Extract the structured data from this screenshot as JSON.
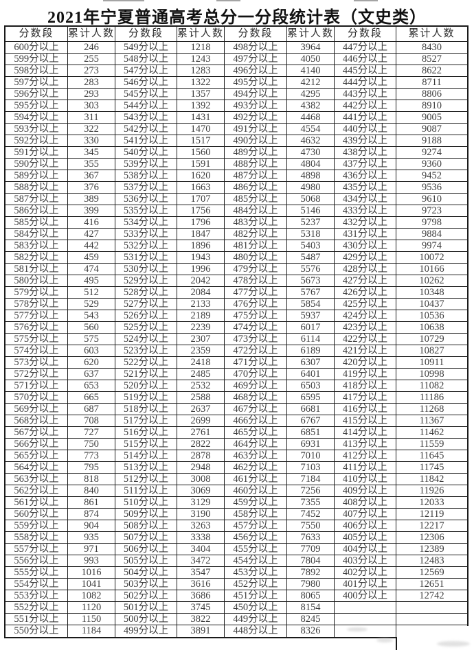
{
  "title": "2021年宁夏普通高考总分一分段统计表（文史类）",
  "colors": {
    "border": "#1a1a1a",
    "text": "#3d3d3d",
    "title": "#111111"
  },
  "table": {
    "headers": [
      "分数段",
      "累计人数",
      "分数段",
      "累计人数",
      "分数段",
      "累计人数",
      "分数段",
      "累计人数"
    ],
    "groups": [
      {
        "rows": [
          [
            "600分以上",
            "246"
          ],
          [
            "599分以上",
            "255"
          ],
          [
            "598分以上",
            "273"
          ],
          [
            "597分以上",
            "283"
          ],
          [
            "596分以上",
            "293"
          ],
          [
            "595分以上",
            "303"
          ],
          [
            "594分以上",
            "311"
          ],
          [
            "593分以上",
            "322"
          ],
          [
            "592分以上",
            "330"
          ],
          [
            "591分以上",
            "345"
          ],
          [
            "590分以上",
            "355"
          ],
          [
            "589分以上",
            "367"
          ],
          [
            "588分以上",
            "376"
          ],
          [
            "587分以上",
            "389"
          ],
          [
            "586分以上",
            "399"
          ],
          [
            "585分以上",
            "416"
          ],
          [
            "584分以上",
            "427"
          ],
          [
            "583分以上",
            "442"
          ],
          [
            "582分以上",
            "459"
          ],
          [
            "581分以上",
            "474"
          ],
          [
            "580分以上",
            "495"
          ],
          [
            "579分以上",
            "512"
          ],
          [
            "578分以上",
            "529"
          ],
          [
            "577分以上",
            "543"
          ],
          [
            "576分以上",
            "560"
          ],
          [
            "575分以上",
            "575"
          ],
          [
            "574分以上",
            "603"
          ],
          [
            "573分以上",
            "620"
          ],
          [
            "572分以上",
            "637"
          ],
          [
            "571分以上",
            "653"
          ],
          [
            "570分以上",
            "665"
          ],
          [
            "569分以上",
            "687"
          ],
          [
            "568分以上",
            "708"
          ],
          [
            "567分以上",
            "727"
          ],
          [
            "566分以上",
            "750"
          ],
          [
            "565分以上",
            "773"
          ],
          [
            "564分以上",
            "795"
          ],
          [
            "563分以上",
            "818"
          ],
          [
            "562分以上",
            "840"
          ],
          [
            "561分以上",
            "861"
          ],
          [
            "560分以上",
            "874"
          ],
          [
            "559分以上",
            "904"
          ],
          [
            "558分以上",
            "935"
          ],
          [
            "557分以上",
            "971"
          ],
          [
            "556分以上",
            "993"
          ],
          [
            "555分以上",
            "1016"
          ],
          [
            "554分以上",
            "1041"
          ],
          [
            "553分以上",
            "1082"
          ],
          [
            "552分以上",
            "1120"
          ],
          [
            "551分以上",
            "1150"
          ],
          [
            "550分以上",
            "1184"
          ]
        ]
      },
      {
        "rows": [
          [
            "549分以上",
            "1218"
          ],
          [
            "548分以上",
            "1243"
          ],
          [
            "547分以上",
            "1283"
          ],
          [
            "546分以上",
            "1322"
          ],
          [
            "545分以上",
            "1357"
          ],
          [
            "544分以上",
            "1392"
          ],
          [
            "543分以上",
            "1431"
          ],
          [
            "542分以上",
            "1470"
          ],
          [
            "541分以上",
            "1517"
          ],
          [
            "540分以上",
            "1560"
          ],
          [
            "539分以上",
            "1591"
          ],
          [
            "538分以上",
            "1620"
          ],
          [
            "537分以上",
            "1663"
          ],
          [
            "536分以上",
            "1707"
          ],
          [
            "535分以上",
            "1756"
          ],
          [
            "534分以上",
            "1796"
          ],
          [
            "533分以上",
            "1847"
          ],
          [
            "532分以上",
            "1896"
          ],
          [
            "531分以上",
            "1943"
          ],
          [
            "530分以上",
            "1996"
          ],
          [
            "529分以上",
            "2042"
          ],
          [
            "528分以上",
            "2084"
          ],
          [
            "527分以上",
            "2133"
          ],
          [
            "526分以上",
            "2189"
          ],
          [
            "525分以上",
            "2239"
          ],
          [
            "524分以上",
            "2307"
          ],
          [
            "523分以上",
            "2359"
          ],
          [
            "522分以上",
            "2418"
          ],
          [
            "521分以上",
            "2485"
          ],
          [
            "520分以上",
            "2532"
          ],
          [
            "519分以上",
            "2588"
          ],
          [
            "518分以上",
            "2637"
          ],
          [
            "517分以上",
            "2699"
          ],
          [
            "516分以上",
            "2761"
          ],
          [
            "515分以上",
            "2822"
          ],
          [
            "514分以上",
            "2878"
          ],
          [
            "513分以上",
            "2948"
          ],
          [
            "512分以上",
            "3008"
          ],
          [
            "511分以上",
            "3069"
          ],
          [
            "510分以上",
            "3129"
          ],
          [
            "509分以上",
            "3190"
          ],
          [
            "508分以上",
            "3263"
          ],
          [
            "507分以上",
            "3338"
          ],
          [
            "506分以上",
            "3404"
          ],
          [
            "505分以上",
            "3472"
          ],
          [
            "504分以上",
            "3547"
          ],
          [
            "503分以上",
            "3616"
          ],
          [
            "502分以上",
            "3686"
          ],
          [
            "501分以上",
            "3745"
          ],
          [
            "500分以上",
            "3822"
          ],
          [
            "499分以上",
            "3891"
          ]
        ]
      },
      {
        "rows": [
          [
            "498分以上",
            "3964"
          ],
          [
            "497分以上",
            "4050"
          ],
          [
            "496分以上",
            "4140"
          ],
          [
            "495分以上",
            "4212"
          ],
          [
            "494分以上",
            "4295"
          ],
          [
            "493分以上",
            "4382"
          ],
          [
            "492分以上",
            "4468"
          ],
          [
            "491分以上",
            "4554"
          ],
          [
            "490分以上",
            "4632"
          ],
          [
            "489分以上",
            "4730"
          ],
          [
            "488分以上",
            "4804"
          ],
          [
            "487分以上",
            "4898"
          ],
          [
            "486分以上",
            "4980"
          ],
          [
            "485分以上",
            "5068"
          ],
          [
            "484分以上",
            "5146"
          ],
          [
            "483分以上",
            "5237"
          ],
          [
            "482分以上",
            "5318"
          ],
          [
            "481分以上",
            "5403"
          ],
          [
            "480分以上",
            "5487"
          ],
          [
            "479分以上",
            "5576"
          ],
          [
            "478分以上",
            "5673"
          ],
          [
            "477分以上",
            "5767"
          ],
          [
            "476分以上",
            "5854"
          ],
          [
            "475分以上",
            "5937"
          ],
          [
            "474分以上",
            "6017"
          ],
          [
            "473分以上",
            "6114"
          ],
          [
            "472分以上",
            "6189"
          ],
          [
            "471分以上",
            "6307"
          ],
          [
            "470分以上",
            "6401"
          ],
          [
            "469分以上",
            "6503"
          ],
          [
            "468分以上",
            "6595"
          ],
          [
            "467分以上",
            "6681"
          ],
          [
            "466分以上",
            "6767"
          ],
          [
            "465分以上",
            "6851"
          ],
          [
            "464分以上",
            "6931"
          ],
          [
            "463分以上",
            "7010"
          ],
          [
            "462分以上",
            "7103"
          ],
          [
            "461分以上",
            "7184"
          ],
          [
            "460分以上",
            "7256"
          ],
          [
            "459分以上",
            "7355"
          ],
          [
            "458分以上",
            "7452"
          ],
          [
            "457分以上",
            "7550"
          ],
          [
            "456分以上",
            "7633"
          ],
          [
            "455分以上",
            "7709"
          ],
          [
            "454分以上",
            "7804"
          ],
          [
            "453分以上",
            "7892"
          ],
          [
            "452分以上",
            "7980"
          ],
          [
            "451分以上",
            "8065"
          ],
          [
            "450分以上",
            "8154"
          ],
          [
            "449分以上",
            "8245"
          ],
          [
            "448分以上",
            "8326"
          ]
        ]
      },
      {
        "rows": [
          [
            "447分以上",
            "8430"
          ],
          [
            "446分以上",
            "8527"
          ],
          [
            "445分以上",
            "8622"
          ],
          [
            "444分以上",
            "8711"
          ],
          [
            "443分以上",
            "8806"
          ],
          [
            "442分以上",
            "8910"
          ],
          [
            "441分以上",
            "9005"
          ],
          [
            "440分以上",
            "9087"
          ],
          [
            "439分以上",
            "9188"
          ],
          [
            "438分以上",
            "9274"
          ],
          [
            "437分以上",
            "9360"
          ],
          [
            "436分以上",
            "9452"
          ],
          [
            "435分以上",
            "9536"
          ],
          [
            "434分以上",
            "9610"
          ],
          [
            "433分以上",
            "9723"
          ],
          [
            "432分以上",
            "9798"
          ],
          [
            "431分以上",
            "9884"
          ],
          [
            "430分以上",
            "9974"
          ],
          [
            "429分以上",
            "10072"
          ],
          [
            "428分以上",
            "10166"
          ],
          [
            "427分以上",
            "10262"
          ],
          [
            "426分以上",
            "10348"
          ],
          [
            "425分以上",
            "10437"
          ],
          [
            "424分以上",
            "10536"
          ],
          [
            "423分以上",
            "10638"
          ],
          [
            "422分以上",
            "10729"
          ],
          [
            "421分以上",
            "10827"
          ],
          [
            "420分以上",
            "10911"
          ],
          [
            "419分以上",
            "10998"
          ],
          [
            "418分以上",
            "11082"
          ],
          [
            "417分以上",
            "11186"
          ],
          [
            "416分以上",
            "11268"
          ],
          [
            "415分以上",
            "11367"
          ],
          [
            "414分以上",
            "11462"
          ],
          [
            "413分以上",
            "11559"
          ],
          [
            "412分以上",
            "11645"
          ],
          [
            "411分以上",
            "11745"
          ],
          [
            "410分以上",
            "11842"
          ],
          [
            "409分以上",
            "11926"
          ],
          [
            "408分以上",
            "12033"
          ],
          [
            "407分以上",
            "12119"
          ],
          [
            "406分以上",
            "12217"
          ],
          [
            "405分以上",
            "12306"
          ],
          [
            "404分以上",
            "12389"
          ],
          [
            "403分以上",
            "12483"
          ],
          [
            "402分以上",
            "12569"
          ],
          [
            "401分以上",
            "12651"
          ],
          [
            "400分以上",
            "12742"
          ]
        ]
      }
    ]
  }
}
